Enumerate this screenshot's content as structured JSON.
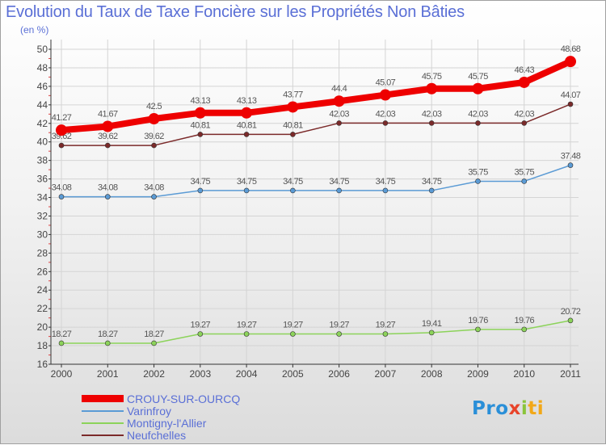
{
  "title": "Evolution du Taux de Taxe Foncière sur les Propriétés Non Bâties",
  "subtitle": "(en %)",
  "logo": {
    "parts": [
      "Pro",
      "x",
      "i",
      "ti"
    ]
  },
  "chart_data": {
    "type": "line",
    "title": "Evolution du Taux de Taxe Foncière sur les Propriétés Non Bâties",
    "ylabel": "(en %)",
    "xlabel": "",
    "categories": [
      "2000",
      "2001",
      "2002",
      "2003",
      "2004",
      "2005",
      "2006",
      "2007",
      "2008",
      "2009",
      "2010",
      "2011"
    ],
    "ylim": [
      16,
      50
    ],
    "yticks": [
      16,
      18,
      20,
      22,
      24,
      26,
      28,
      30,
      32,
      34,
      36,
      38,
      40,
      42,
      44,
      46,
      48,
      50
    ],
    "series": [
      {
        "name": "CROUY-SUR-OURCQ",
        "color": "#ee0000",
        "emphasis": true,
        "values": [
          41.27,
          41.67,
          42.5,
          43.13,
          43.13,
          43.77,
          44.4,
          45.07,
          45.75,
          45.75,
          46.43,
          48.68
        ],
        "labels": [
          "41.27",
          "41.67",
          "42.5",
          "43.13",
          "43.13",
          "43.77",
          "44.4",
          "45.07",
          "45.75",
          "45.75",
          "46.43",
          "48.68"
        ]
      },
      {
        "name": "Varinfroy",
        "color": "#5b9bd5",
        "values": [
          34.08,
          34.08,
          34.08,
          34.75,
          34.75,
          34.75,
          34.75,
          34.75,
          34.75,
          35.75,
          35.75,
          37.48
        ],
        "labels": [
          "34.08",
          "34.08",
          "34.08",
          "34.75",
          "34.75",
          "34.75",
          "34.75",
          "34.75",
          "34.75",
          "35.75",
          "35.75",
          "37.48"
        ]
      },
      {
        "name": "Montigny-l'Allier",
        "color": "#8cd35a",
        "values": [
          18.27,
          18.27,
          18.27,
          19.27,
          19.27,
          19.27,
          19.27,
          19.27,
          19.41,
          19.76,
          19.76,
          20.72
        ],
        "labels": [
          "18.27",
          "18.27",
          "18.27",
          "19.27",
          "19.27",
          "19.27",
          "19.27",
          "19.27",
          "19.41",
          "19.76",
          "19.76",
          "20.72"
        ]
      },
      {
        "name": "Neufchelles",
        "color": "#7b2a2a",
        "values": [
          39.62,
          39.62,
          39.62,
          40.81,
          40.81,
          40.81,
          42.03,
          42.03,
          42.03,
          42.03,
          42.03,
          44.07
        ],
        "labels": [
          "39.62",
          "39.62",
          "39.62",
          "40.81",
          "40.81",
          "40.81",
          "42.03",
          "42.03",
          "42.03",
          "42.03",
          "42.03",
          "44.07"
        ]
      }
    ]
  }
}
